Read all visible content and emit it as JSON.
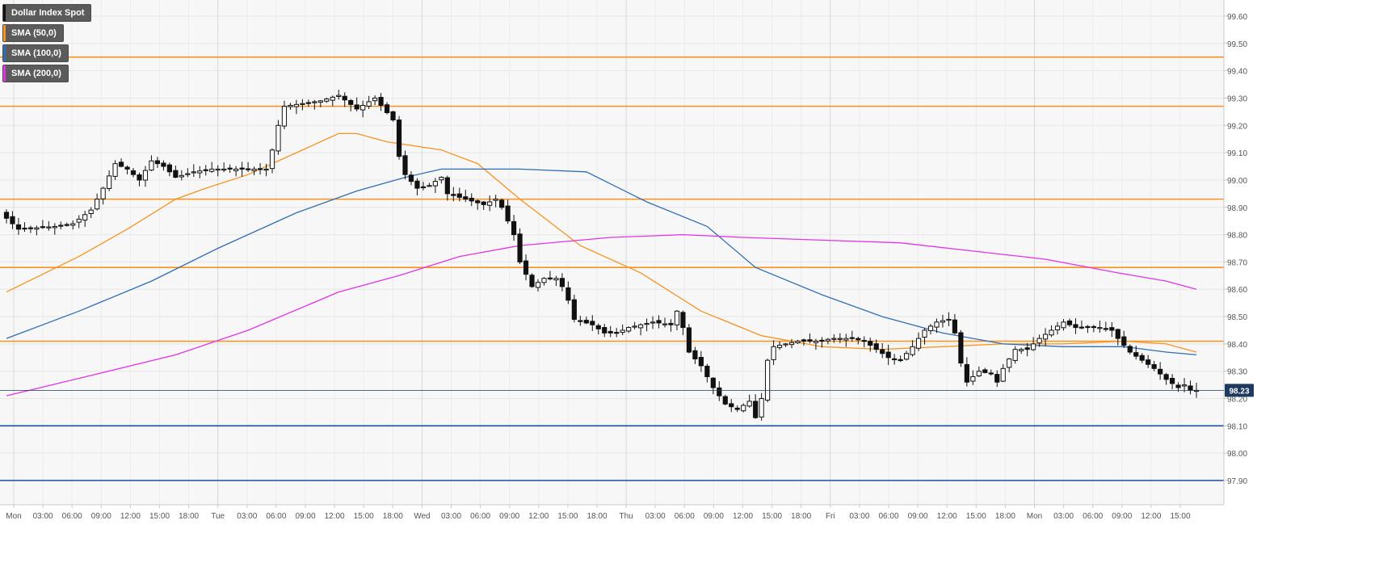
{
  "legend": [
    {
      "label": "Dollar Index Spot",
      "color": "#111111"
    },
    {
      "label": "SMA (50,0)",
      "color": "#f7931e"
    },
    {
      "label": "SMA (100,0)",
      "color": "#2f6eb5"
    },
    {
      "label": "SMA (200,0)",
      "color": "#e233e6"
    }
  ],
  "price_label": "98.23",
  "chart_data": {
    "type": "candlestick",
    "y_axis": {
      "ylim": [
        97.82,
        99.66
      ],
      "ticks": [
        "97.90",
        "98.00",
        "98.10",
        "98.20",
        "98.30",
        "98.40",
        "98.50",
        "98.60",
        "98.70",
        "98.80",
        "98.90",
        "99.00",
        "99.10",
        "99.20",
        "99.30",
        "99.40",
        "99.50",
        "99.60"
      ]
    },
    "x_axis": {
      "tick_labels": [
        "Mon",
        "03:00",
        "06:00",
        "09:00",
        "12:00",
        "15:00",
        "18:00",
        "Tue",
        "03:00",
        "06:00",
        "09:00",
        "12:00",
        "15:00",
        "18:00",
        "Wed",
        "03:00",
        "06:00",
        "09:00",
        "12:00",
        "15:00",
        "18:00",
        "Thu",
        "03:00",
        "06:00",
        "09:00",
        "12:00",
        "15:00",
        "18:00",
        "Fri",
        "03:00",
        "06:00",
        "09:00",
        "12:00",
        "15:00",
        "18:00",
        "Mon",
        "03:00",
        "06:00",
        "09:00",
        "12:00",
        "15:00"
      ],
      "day_boundaries": [
        "Mon",
        "Tue",
        "Wed",
        "Thu",
        "Fri",
        "Mon"
      ]
    },
    "horizontal_levels": [
      {
        "value": 99.45,
        "color": "#f7931e"
      },
      {
        "value": 99.27,
        "color": "#f7931e"
      },
      {
        "value": 98.93,
        "color": "#f7931e"
      },
      {
        "value": 98.68,
        "color": "#f7931e"
      },
      {
        "value": 98.41,
        "color": "#f7931e"
      },
      {
        "value": 98.1,
        "color": "#1f4fa0"
      },
      {
        "value": 97.9,
        "color": "#1f4fa0"
      }
    ],
    "current_price": 98.23,
    "price_path": [
      [
        0,
        98.88
      ],
      [
        3,
        98.82
      ],
      [
        9,
        98.83
      ],
      [
        12,
        98.84
      ],
      [
        15,
        98.89
      ],
      [
        17,
        98.97
      ],
      [
        19,
        99.06
      ],
      [
        21,
        99.04
      ],
      [
        23,
        99.0
      ],
      [
        25,
        99.07
      ],
      [
        27,
        99.05
      ],
      [
        29,
        99.01
      ],
      [
        32,
        99.03
      ],
      [
        35,
        99.04
      ],
      [
        37,
        99.04
      ],
      [
        44,
        99.04
      ],
      [
        45,
        99.11
      ],
      [
        46,
        99.2
      ],
      [
        47,
        99.27
      ],
      [
        50,
        99.28
      ],
      [
        53,
        99.29
      ],
      [
        56,
        99.31
      ],
      [
        59,
        99.26
      ],
      [
        62,
        99.3
      ],
      [
        65,
        99.22
      ],
      [
        65.5,
        99.12
      ],
      [
        67,
        99.02
      ],
      [
        69,
        98.97
      ],
      [
        71,
        98.98
      ],
      [
        73,
        99.01
      ],
      [
        74,
        98.95
      ],
      [
        77,
        98.93
      ],
      [
        80,
        98.91
      ],
      [
        82,
        98.93
      ],
      [
        83,
        98.9
      ],
      [
        85,
        98.8
      ],
      [
        86,
        98.7
      ],
      [
        88,
        98.61
      ],
      [
        90,
        98.64
      ],
      [
        92,
        98.64
      ],
      [
        93,
        98.61
      ],
      [
        94,
        98.56
      ],
      [
        95,
        98.49
      ],
      [
        98,
        98.47
      ],
      [
        100,
        98.44
      ],
      [
        102,
        98.44
      ],
      [
        104,
        98.46
      ],
      [
        108,
        98.48
      ],
      [
        111,
        98.47
      ],
      [
        112,
        98.52
      ],
      [
        113,
        98.46
      ],
      [
        114,
        98.37
      ],
      [
        116,
        98.32
      ],
      [
        118,
        98.24
      ],
      [
        120,
        98.18
      ],
      [
        122,
        98.16
      ],
      [
        124,
        98.19
      ],
      [
        125,
        98.13
      ],
      [
        126,
        98.2
      ],
      [
        127,
        98.34
      ],
      [
        128,
        98.39
      ],
      [
        130,
        98.4
      ],
      [
        132,
        98.41
      ],
      [
        135,
        98.41
      ],
      [
        138,
        98.42
      ],
      [
        141,
        98.42
      ],
      [
        143,
        98.41
      ],
      [
        145,
        98.38
      ],
      [
        147,
        98.35
      ],
      [
        149,
        98.34
      ],
      [
        151,
        98.39
      ],
      [
        153,
        98.45
      ],
      [
        155,
        98.48
      ],
      [
        157,
        98.49
      ],
      [
        158,
        98.44
      ],
      [
        159,
        98.33
      ],
      [
        160,
        98.26
      ],
      [
        162,
        98.3
      ],
      [
        164,
        98.29
      ],
      [
        165,
        98.26
      ],
      [
        166,
        98.31
      ],
      [
        168,
        98.38
      ],
      [
        170,
        98.38
      ],
      [
        172,
        98.42
      ],
      [
        174,
        98.45
      ],
      [
        176,
        98.48
      ],
      [
        178,
        98.46
      ],
      [
        180,
        98.46
      ],
      [
        182,
        98.46
      ],
      [
        184,
        98.45
      ],
      [
        185,
        98.42
      ],
      [
        187,
        98.37
      ],
      [
        189,
        98.34
      ],
      [
        191,
        98.31
      ],
      [
        193,
        98.27
      ],
      [
        195,
        98.24
      ],
      [
        196,
        98.25
      ],
      [
        197,
        98.23
      ]
    ],
    "series": [
      {
        "name": "SMA (50,0)",
        "color": "#f7931e",
        "points": [
          [
            0,
            98.59
          ],
          [
            12,
            98.72
          ],
          [
            20,
            98.82
          ],
          [
            28,
            98.93
          ],
          [
            33,
            98.97
          ],
          [
            40,
            99.02
          ],
          [
            48,
            99.1
          ],
          [
            55,
            99.17
          ],
          [
            58,
            99.17
          ],
          [
            63,
            99.14
          ],
          [
            72,
            99.11
          ],
          [
            78,
            99.06
          ],
          [
            85,
            98.93
          ],
          [
            95,
            98.76
          ],
          [
            105,
            98.66
          ],
          [
            115,
            98.52
          ],
          [
            125,
            98.43
          ],
          [
            135,
            98.39
          ],
          [
            145,
            98.38
          ],
          [
            155,
            98.39
          ],
          [
            165,
            98.4
          ],
          [
            175,
            98.4
          ],
          [
            185,
            98.41
          ],
          [
            192,
            98.4
          ],
          [
            197,
            98.37
          ]
        ]
      },
      {
        "name": "SMA (100,0)",
        "color": "#2f6eb5",
        "points": [
          [
            0,
            98.42
          ],
          [
            12,
            98.52
          ],
          [
            24,
            98.63
          ],
          [
            35,
            98.75
          ],
          [
            48,
            98.88
          ],
          [
            58,
            98.96
          ],
          [
            66,
            99.01
          ],
          [
            72,
            99.04
          ],
          [
            85,
            99.04
          ],
          [
            96,
            99.03
          ],
          [
            106,
            98.92
          ],
          [
            116,
            98.83
          ],
          [
            124,
            98.68
          ],
          [
            135,
            98.58
          ],
          [
            145,
            98.5
          ],
          [
            155,
            98.44
          ],
          [
            165,
            98.4
          ],
          [
            175,
            98.39
          ],
          [
            185,
            98.39
          ],
          [
            192,
            98.37
          ],
          [
            197,
            98.36
          ]
        ]
      },
      {
        "name": "SMA (200,0)",
        "color": "#e233e6",
        "points": [
          [
            0,
            98.21
          ],
          [
            15,
            98.29
          ],
          [
            28,
            98.36
          ],
          [
            40,
            98.45
          ],
          [
            55,
            98.59
          ],
          [
            65,
            98.65
          ],
          [
            75,
            98.72
          ],
          [
            85,
            98.76
          ],
          [
            100,
            98.79
          ],
          [
            112,
            98.8
          ],
          [
            122,
            98.79
          ],
          [
            135,
            98.78
          ],
          [
            148,
            98.77
          ],
          [
            160,
            98.74
          ],
          [
            172,
            98.71
          ],
          [
            184,
            98.66
          ],
          [
            192,
            98.63
          ],
          [
            197,
            98.6
          ]
        ]
      }
    ]
  }
}
